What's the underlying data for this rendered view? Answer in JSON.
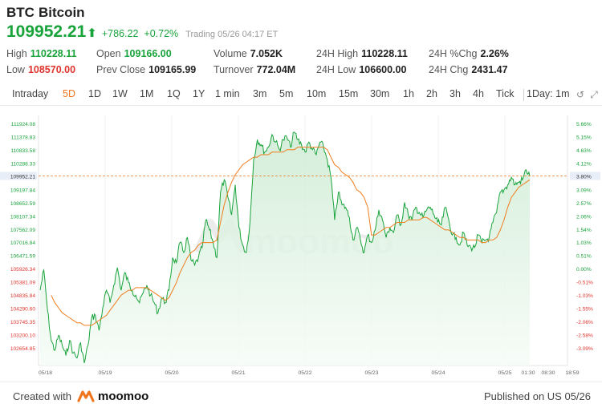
{
  "header": {
    "ticker": "BTC",
    "name": "Bitcoin",
    "last_price": "109952.21",
    "change": "+786.22",
    "change_pct": "+0.72%",
    "status": "Trading 05/26 04:17 ET"
  },
  "stats": {
    "high_label": "High",
    "high": "110228.11",
    "low_label": "Low",
    "low": "108570.00",
    "open_label": "Open",
    "open": "109166.00",
    "prev_close_label": "Prev Close",
    "prev_close": "109165.99",
    "volume_label": "Volume",
    "volume": "7.052K",
    "turnover_label": "Turnover",
    "turnover": "772.04M",
    "h24_high_label": "24H High",
    "h24_high": "110228.11",
    "h24_low_label": "24H Low",
    "h24_low": "106600.00",
    "h24_pctchg_label": "24H %Chg",
    "h24_pctchg": "2.26%",
    "h24_chg_label": "24H Chg",
    "h24_chg": "2431.47"
  },
  "tabs": [
    "Intraday",
    "5D",
    "1D",
    "1W",
    "1M",
    "1Q",
    "1Y",
    "1 min",
    "3m",
    "5m",
    "10m",
    "15m",
    "30m",
    "1h",
    "2h",
    "3h",
    "4h",
    "Tick"
  ],
  "active_tab": "5D",
  "interval_label": "1Day: 1m",
  "icons": {
    "undo": "undo-icon",
    "expand": "expand-icon"
  },
  "colors": {
    "up": "#19a33b",
    "down": "#e0342e",
    "accent": "#f0761e",
    "price_line": "#19a33b",
    "avg_line": "#f07d1e",
    "fill": "#e6f5e8"
  },
  "chart_data": {
    "type": "line",
    "y_left_ticks": [
      "111924.08",
      "111378.83",
      "110833.58",
      "110288.33",
      "109743.08",
      "109197.84",
      "108652.59",
      "108107.34",
      "107562.09",
      "107016.84",
      "106471.59",
      "105926.34",
      "105381.09",
      "104835.84",
      "104290.60",
      "103745.35",
      "103200.10",
      "102654.85"
    ],
    "y_right_ticks": [
      "5.66%",
      "5.15%",
      "4.63%",
      "4.12%",
      "3.60%",
      "3.09%",
      "2.57%",
      "2.06%",
      "1.54%",
      "1.03%",
      "0.51%",
      "0.00%",
      "-0.51%",
      "-1.03%",
      "-1.55%",
      "-2.06%",
      "-2.58%",
      "-3.09%"
    ],
    "prev_close": 105926.34,
    "current_price": 109952.21,
    "current_price_label": "109952.21",
    "current_pct_label": "3.80%",
    "x_labels": [
      "05/18",
      "05/19",
      "05/20",
      "05/21",
      "05/22",
      "05/23",
      "05/24",
      "05/25",
      "01:30",
      "08:30",
      "18:59"
    ],
    "ylim": [
      102400,
      112300
    ],
    "series": [
      {
        "values": [
          105400,
          106200,
          104600,
          103400,
          103000,
          103600,
          103200,
          102800,
          103400,
          102900,
          102700,
          103300,
          102500,
          103200,
          104300,
          104400,
          103800,
          104700,
          105400,
          104900,
          105600,
          106300,
          105400,
          106100,
          105700,
          105400,
          105200,
          104900,
          105300,
          105600,
          105200,
          104900,
          104500,
          105100,
          104900,
          105400,
          106700,
          106500,
          107300,
          106900,
          107500,
          106600,
          106400,
          106700,
          107100,
          108200,
          107800,
          107300,
          106700,
          109300,
          109800,
          109100,
          108400,
          109600,
          107900,
          107200,
          106900,
          108100,
          110600,
          111400,
          111200,
          110900,
          111100,
          111600,
          111300,
          111000,
          111400,
          111500,
          111100,
          111700,
          111400,
          111200,
          110900,
          111300,
          111000,
          110800,
          111300,
          111100,
          110600,
          109900,
          108200,
          109300,
          108800,
          108700,
          108300,
          107400,
          107900,
          107400,
          106900,
          107600,
          107300,
          107800,
          108600,
          108200,
          107500,
          107900,
          107700,
          108400,
          108000,
          108900,
          108400,
          108200,
          108700,
          108500,
          108300,
          108600,
          108700,
          108400,
          108100,
          108000,
          108700,
          108200,
          107600,
          107500,
          107200,
          107700,
          107200,
          107100,
          107100,
          107600,
          107300,
          107400,
          107500,
          108100,
          108500,
          109300,
          109400,
          109600,
          109900,
          109600,
          109700,
          109800,
          110200,
          109952
        ]
      },
      {
        "values": [
          null,
          null,
          null,
          105200,
          104900,
          104700,
          104500,
          104400,
          104300,
          104200,
          104100,
          104100,
          104000,
          104000,
          104000,
          104100,
          104200,
          104300,
          104400,
          104600,
          104800,
          105000,
          105200,
          105300,
          105400,
          105400,
          105500,
          105500,
          105500,
          105500,
          105400,
          105300,
          105200,
          105100,
          105000,
          105100,
          105400,
          105700,
          106100,
          106400,
          106700,
          106900,
          107000,
          107200,
          107300,
          107300,
          107300,
          107300,
          107400,
          108100,
          108800,
          109300,
          109700,
          110000,
          110200,
          110400,
          110500,
          110600,
          110700,
          110700,
          110800,
          110800,
          110800,
          110900,
          110900,
          110900,
          110900,
          111000,
          111000,
          111000,
          111100,
          111100,
          111100,
          111100,
          111100,
          111100,
          111100,
          111100,
          111000,
          110700,
          110400,
          110300,
          110100,
          110000,
          109900,
          109700,
          109400,
          109300,
          109100,
          108700,
          107600,
          107600,
          107700,
          107800,
          107900,
          107900,
          108000,
          108100,
          108100,
          108100,
          108200,
          108200,
          108200,
          108200,
          108300,
          108300,
          108200,
          108100,
          108000,
          107900,
          107800,
          107800,
          107700,
          107600,
          107500,
          107500,
          107400,
          107400,
          107400,
          107400,
          107300,
          107300,
          107400,
          107400,
          107500,
          107800,
          108200,
          108700,
          109100,
          109300,
          109500,
          109600,
          109700,
          109800
        ]
      }
    ],
    "watermark": "moomoo"
  },
  "footer": {
    "created_with": "Created with",
    "brand": "moomoo",
    "published": "Published on US 05/26"
  }
}
